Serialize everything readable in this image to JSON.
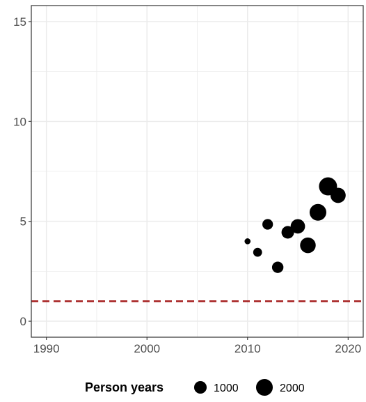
{
  "chart_data": {
    "type": "scatter",
    "xlim": [
      1988.5,
      2021.5
    ],
    "ylim": [
      -0.8,
      15.8
    ],
    "x_ticks": [
      1990,
      2000,
      2010,
      2020
    ],
    "y_ticks": [
      0,
      5,
      10,
      15
    ],
    "x_tick_labels": [
      "1990",
      "2000",
      "2010",
      "2020"
    ],
    "y_tick_labels": [
      "0",
      "5",
      "10",
      "15"
    ],
    "grid": true,
    "reference_line": {
      "y": 1,
      "style": "dashed",
      "color": "#a51d1d"
    },
    "points": [
      {
        "x": 2010,
        "y": 4.0,
        "size": 120
      },
      {
        "x": 2011,
        "y": 3.45,
        "size": 400
      },
      {
        "x": 2012,
        "y": 4.85,
        "size": 650
      },
      {
        "x": 2013,
        "y": 2.7,
        "size": 780
      },
      {
        "x": 2014,
        "y": 4.45,
        "size": 1000
      },
      {
        "x": 2015,
        "y": 4.75,
        "size": 1400
      },
      {
        "x": 2016,
        "y": 3.8,
        "size": 1700
      },
      {
        "x": 2017,
        "y": 5.45,
        "size": 2000
      },
      {
        "x": 2018,
        "y": 6.75,
        "size": 2400
      },
      {
        "x": 2019,
        "y": 6.3,
        "size": 1600
      }
    ],
    "legend": {
      "title": "Person years",
      "position": "bottom",
      "entries": [
        {
          "label": "1000",
          "size": 1000
        },
        {
          "label": "2000",
          "size": 2000
        }
      ]
    },
    "point_color": "#000000",
    "grid_color": "#ebebeb",
    "frame_color": "#333333"
  }
}
